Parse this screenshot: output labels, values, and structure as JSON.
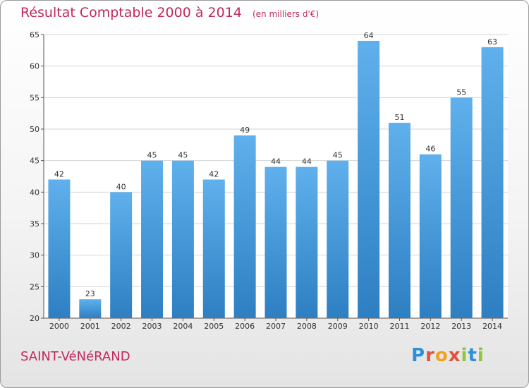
{
  "header": {
    "title": "Résultat Comptable 2000 à 2014",
    "subtitle": "(en milliers d'€)"
  },
  "commune": "SAINT-VéNéRAND",
  "logo": {
    "letters": [
      "P",
      "r",
      "o",
      "x",
      "i",
      "t",
      "i"
    ],
    "colors": [
      "#2f8fd6",
      "#e0533c",
      "#f2a21c",
      "#e0533c",
      "#8cc63f",
      "#2f8fd6",
      "#8cc63f"
    ]
  },
  "colors": {
    "bar_top": "#5fb0ec",
    "bar_bottom": "#2e7fc2",
    "grid": "#d6d6d6",
    "plot_bg": "#ffffff"
  },
  "chart_data": {
    "type": "bar",
    "categories": [
      "2000",
      "2001",
      "2002",
      "2003",
      "2004",
      "2005",
      "2006",
      "2007",
      "2008",
      "2009",
      "2010",
      "2011",
      "2012",
      "2013",
      "2014"
    ],
    "values": [
      42,
      23,
      40,
      45,
      45,
      42,
      49,
      44,
      44,
      45,
      64,
      51,
      46,
      55,
      63
    ],
    "title": "Résultat Comptable 2000 à 2014",
    "xlabel": "",
    "ylabel": "",
    "ylim": [
      20,
      65
    ],
    "yticks": [
      20,
      25,
      30,
      35,
      40,
      45,
      50,
      55,
      60,
      65
    ],
    "grid": true,
    "data_labels": true
  }
}
